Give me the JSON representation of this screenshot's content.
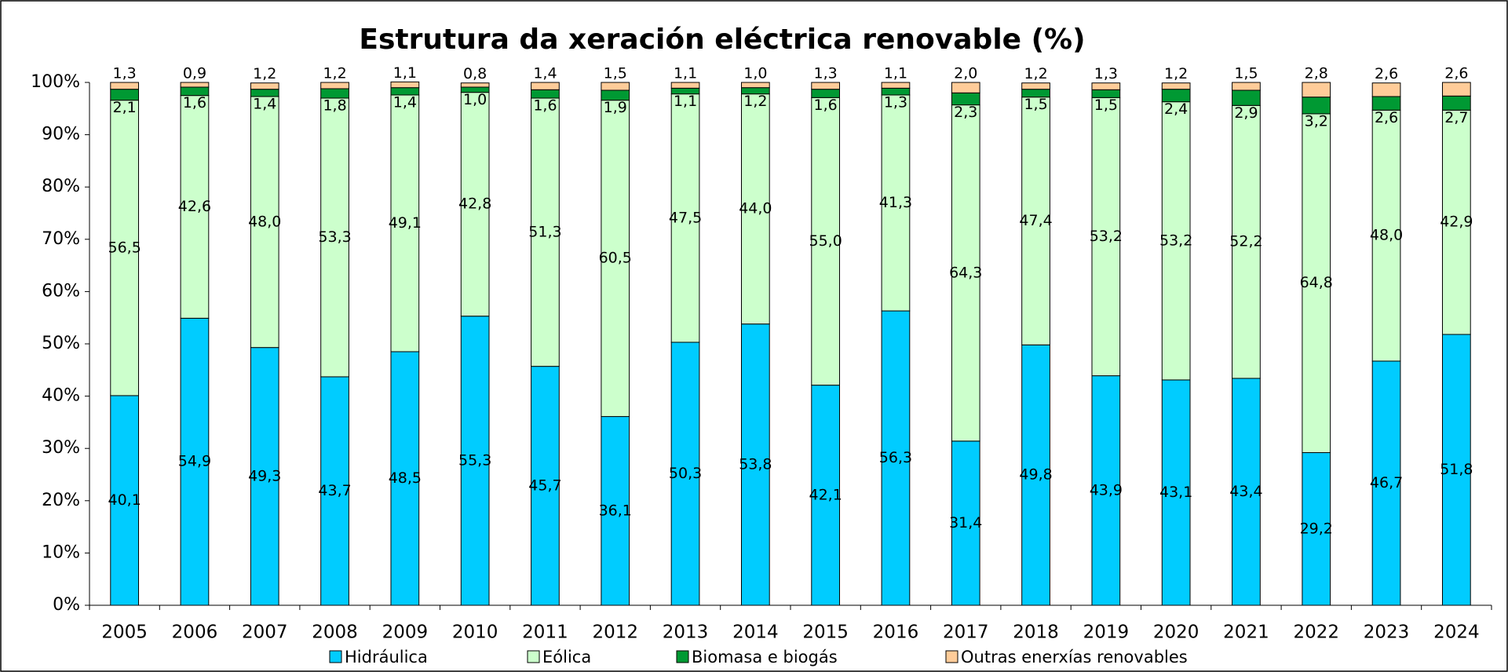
{
  "chart_data": {
    "type": "stacked_bar",
    "title": "Estrutura da xeración eléctrica renovable (%)",
    "categories": [
      "2005",
      "2006",
      "2007",
      "2008",
      "2009",
      "2010",
      "2011",
      "2012",
      "2013",
      "2014",
      "2015",
      "2016",
      "2017",
      "2018",
      "2019",
      "2020",
      "2021",
      "2022",
      "2023",
      "2024"
    ],
    "series": [
      {
        "name": "Hidráulica",
        "color": "#00ccff",
        "values": [
          40.1,
          54.9,
          49.3,
          43.7,
          48.5,
          55.3,
          45.7,
          36.1,
          50.3,
          53.8,
          42.1,
          56.3,
          31.4,
          49.8,
          43.9,
          43.1,
          43.4,
          29.2,
          46.7,
          51.8
        ],
        "value_labels": [
          "40,1",
          "54,9",
          "49,3",
          "43,7",
          "48,5",
          "55,3",
          "45,7",
          "36,1",
          "50,3",
          "53,8",
          "42,1",
          "56,3",
          "31,4",
          "49,8",
          "43,9",
          "43,1",
          "43,4",
          "29,2",
          "46,7",
          "51,8"
        ]
      },
      {
        "name": "Eólica",
        "color": "#ccffcc",
        "values": [
          56.5,
          42.6,
          48.0,
          53.3,
          49.1,
          42.8,
          51.3,
          60.5,
          47.5,
          44.0,
          55.0,
          41.3,
          64.3,
          47.4,
          53.2,
          53.2,
          52.2,
          64.8,
          48.0,
          42.9
        ],
        "value_labels": [
          "56,5",
          "42,6",
          "48,0",
          "53,3",
          "49,1",
          "42,8",
          "51,3",
          "60,5",
          "47,5",
          "44,0",
          "55,0",
          "41,3",
          "64,3",
          "47,4",
          "53,2",
          "53,2",
          "52,2",
          "64,8",
          "48,0",
          "42,9"
        ]
      },
      {
        "name": "Biomasa e biogás",
        "color": "#009933",
        "values": [
          2.1,
          1.6,
          1.4,
          1.8,
          1.4,
          1.0,
          1.6,
          1.9,
          1.1,
          1.2,
          1.6,
          1.3,
          2.3,
          1.5,
          1.5,
          2.4,
          2.9,
          3.2,
          2.6,
          2.7
        ],
        "value_labels": [
          "2,1",
          "1,6",
          "1,4",
          "1,8",
          "1,4",
          "1,0",
          "1,6",
          "1,9",
          "1,1",
          "1,2",
          "1,6",
          "1,3",
          "2,3",
          "1,5",
          "1,5",
          "2,4",
          "2,9",
          "3,2",
          "2,6",
          "2,7"
        ]
      },
      {
        "name": "Outras enerxías renovables",
        "color": "#ffcc99",
        "values": [
          1.3,
          0.9,
          1.2,
          1.2,
          1.1,
          0.8,
          1.4,
          1.5,
          1.1,
          1.0,
          1.3,
          1.1,
          2.0,
          1.2,
          1.3,
          1.2,
          1.5,
          2.8,
          2.6,
          2.6
        ],
        "value_labels": [
          "1,3",
          "0,9",
          "1,2",
          "1,2",
          "1,1",
          "0,8",
          "1,4",
          "1,5",
          "1,1",
          "1,0",
          "1,3",
          "1,1",
          "2,0",
          "1,2",
          "1,3",
          "1,2",
          "1,5",
          "2,8",
          "2,6",
          "2,6"
        ]
      }
    ],
    "ylim": [
      0,
      100
    ],
    "yticks": [
      {
        "value": 0,
        "label": "0%"
      },
      {
        "value": 10,
        "label": "10%"
      },
      {
        "value": 20,
        "label": "20%"
      },
      {
        "value": 30,
        "label": "30%"
      },
      {
        "value": 40,
        "label": "40%"
      },
      {
        "value": 50,
        "label": "50%"
      },
      {
        "value": 60,
        "label": "60%"
      },
      {
        "value": 70,
        "label": "70%"
      },
      {
        "value": 80,
        "label": "80%"
      },
      {
        "value": 90,
        "label": "90%"
      },
      {
        "value": 100,
        "label": "100%"
      }
    ],
    "legend": "bottom"
  }
}
